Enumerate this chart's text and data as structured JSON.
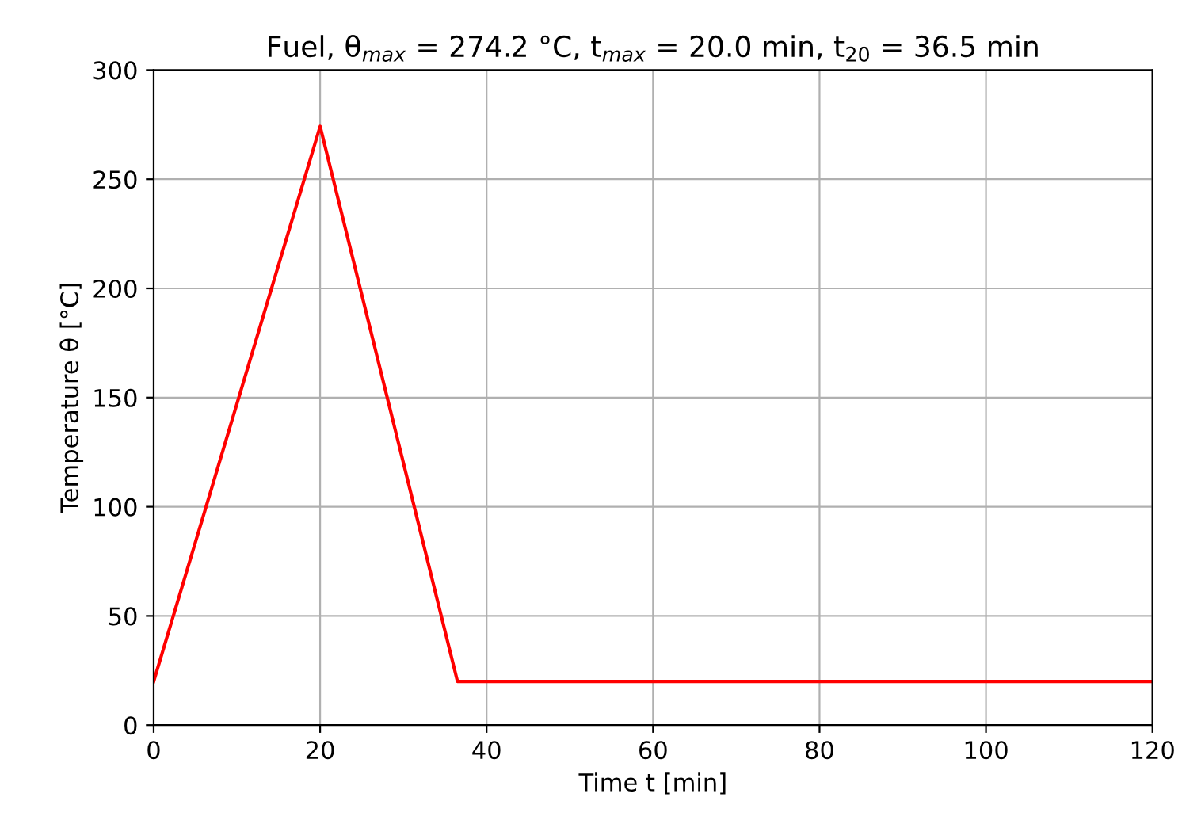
{
  "chart_data": {
    "type": "line",
    "title": "Fuel, θ$_{max}$ = 274.2 °C, t$_{max}$ = 20.0 min, t$_{20}$ = 36.5 min",
    "xlabel": "Time t [min]",
    "ylabel": "Temperature θ [°C]",
    "x": [
      0,
      20,
      36.5,
      120
    ],
    "series": [
      {
        "color": "#ff0000",
        "values": [
          20,
          274.2,
          20,
          20
        ]
      }
    ],
    "xlim": [
      0,
      120
    ],
    "xticks": [
      0,
      20,
      40,
      60,
      80,
      100,
      120
    ],
    "ylim": [
      0,
      300
    ],
    "yticks": [
      0,
      50,
      100,
      150,
      200,
      250,
      300
    ],
    "grid": true,
    "legend": false
  }
}
